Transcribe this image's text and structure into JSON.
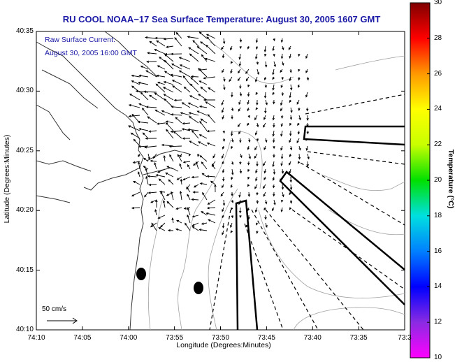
{
  "title": "RU COOL  NOAA−17  Sea Surface Temperature:  August 30, 2005 1607 GMT",
  "inset": {
    "line1": "Raw Surface Current:",
    "line2": "August 30, 2005 16:00 GMT"
  },
  "axes": {
    "ylabel": "Latitude (Degrees:Minutes)",
    "xlabel": "Longitude (Degrees:Minutes)",
    "yticks": [
      "40:35",
      "40:30",
      "40:25",
      "40:20",
      "40:15",
      "40:10"
    ],
    "xticks": [
      "74:10",
      "74:05",
      "74:00",
      "73:55",
      "73:50",
      "73:45",
      "73:40",
      "73:35",
      "73:3"
    ]
  },
  "scale": {
    "label": "50 cm/s"
  },
  "colorbar": {
    "label": "Temperature (°C)",
    "ticks": [
      "30",
      "28",
      "26",
      "24",
      "22",
      "20",
      "18",
      "16",
      "14",
      "12",
      "10"
    ],
    "range": [
      10,
      30
    ],
    "colors": [
      "#ff00ff",
      "#8a2be2",
      "#0000ff",
      "#0080ff",
      "#00e0e0",
      "#00e000",
      "#c8ff00",
      "#ffff00",
      "#ff9900",
      "#ff0000",
      "#800000"
    ]
  },
  "colors": {
    "title": "#1a1aa6",
    "coast": "#000000",
    "contour": "#999999"
  }
}
